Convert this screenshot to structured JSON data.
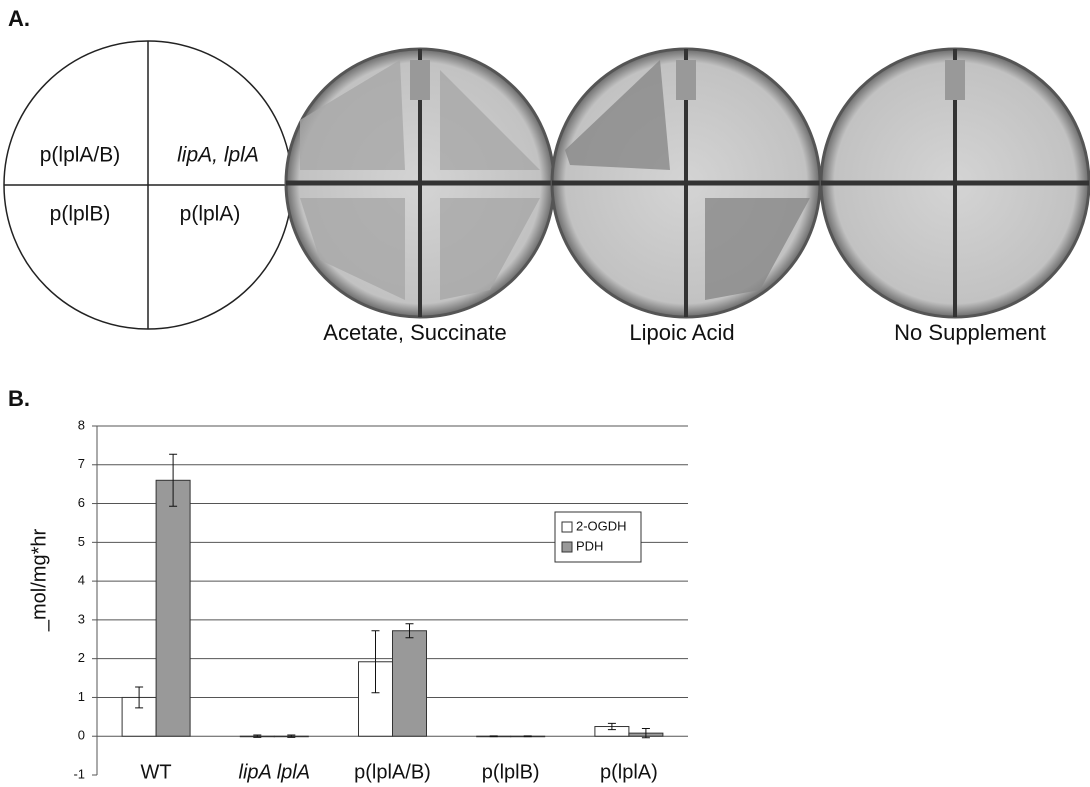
{
  "panel_labels": [
    "A.",
    "B."
  ],
  "panel_a": {
    "quadrants": [
      "p(lplA/B)",
      "lipA, lplA",
      "p(lplB)",
      "p(lplA)"
    ],
    "plates": [
      "Acetate, Succinate",
      "Lipoic Acid",
      "No Supplement"
    ]
  },
  "chart_data": {
    "type": "bar",
    "y_label": "_mol/mg*hr",
    "categories": [
      "WT",
      "lipA lplA",
      "p(lplA/B)",
      "p(lplB)",
      "p(lplA)"
    ],
    "series": [
      {
        "name": "2-OGDH",
        "color": "#ffffff",
        "values": [
          1.0,
          0.0,
          1.92,
          0.0,
          0.25
        ],
        "errors": [
          0.27,
          0.03,
          0.8,
          0.01,
          0.08
        ]
      },
      {
        "name": "PDH",
        "color": "#999999",
        "values": [
          6.6,
          0.0,
          2.72,
          0.0,
          0.08
        ],
        "errors": [
          0.67,
          0.03,
          0.18,
          0.01,
          0.12
        ]
      }
    ],
    "ylim": [
      -1,
      8
    ],
    "yticks": [
      -1,
      0,
      1,
      2,
      3,
      4,
      5,
      6,
      7,
      8
    ],
    "grid": true,
    "legend": "right"
  }
}
